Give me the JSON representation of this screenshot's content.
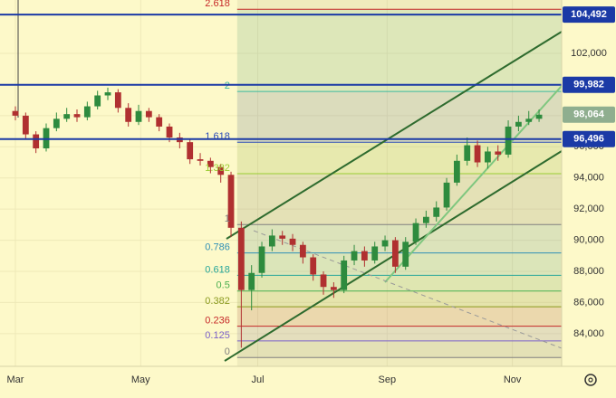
{
  "chart_data": {
    "type": "candlestick",
    "up_color": "#2e8b3e",
    "down_color": "#b03030",
    "grid": true,
    "xlim": [
      -1.5,
      53.2
    ],
    "xticks": [
      {
        "value": 0,
        "label": "Mar"
      },
      {
        "value": 12.2,
        "label": "May"
      },
      {
        "value": 23.6,
        "label": "Jul"
      },
      {
        "value": 36.2,
        "label": "Sep"
      },
      {
        "value": 48.4,
        "label": "Nov"
      }
    ],
    "ylim": [
      81900,
      105430
    ],
    "yticks": [
      {
        "value": 84000,
        "label": "84,000"
      },
      {
        "value": 86000,
        "label": "86,000"
      },
      {
        "value": 88000,
        "label": "88,000"
      },
      {
        "value": 90000,
        "label": "90,000"
      },
      {
        "value": 92000,
        "label": "92,000"
      },
      {
        "value": 94000,
        "label": "94,000"
      },
      {
        "value": 96000,
        "label": "96,000"
      },
      {
        "value": 98000,
        "label": "98,000"
      },
      {
        "value": 100000,
        "label": "100,000"
      },
      {
        "value": 102000,
        "label": "102,000"
      }
    ],
    "open": [
      98300,
      98000,
      96800,
      95900,
      97200,
      97800,
      98100,
      97900,
      98600,
      99300,
      99500,
      98500,
      97600,
      98300,
      97900,
      97300,
      96600,
      96300,
      95200,
      95100,
      94700,
      94200,
      90800,
      86800,
      87900,
      89600,
      90300,
      90100,
      89700,
      88900,
      87800,
      87000,
      86800,
      88700,
      89300,
      88700,
      89600,
      90000,
      88300,
      89900,
      91100,
      91500,
      92100,
      93700,
      95100,
      96100,
      95000,
      95700,
      95500,
      97300,
      97600,
      97800
    ],
    "high": [
      98600,
      98200,
      97000,
      97500,
      98200,
      98500,
      98400,
      98900,
      99600,
      99800,
      99700,
      98800,
      98700,
      98500,
      98100,
      97500,
      96900,
      96500,
      95600,
      95300,
      94900,
      94400,
      91200,
      88400,
      89900,
      90700,
      90600,
      90400,
      89900,
      89100,
      88000,
      87300,
      89000,
      89700,
      89600,
      89900,
      90300,
      90200,
      90200,
      91400,
      91900,
      92500,
      94000,
      95500,
      96600,
      96400,
      96000,
      96100,
      97700,
      98000,
      98300,
      98400
    ],
    "low": [
      97700,
      96500,
      95600,
      95700,
      97000,
      97600,
      97600,
      97700,
      98400,
      99000,
      98200,
      97300,
      97400,
      97600,
      97000,
      96300,
      95900,
      94900,
      94800,
      94300,
      93700,
      90200,
      83100,
      85500,
      87600,
      89300,
      89700,
      89300,
      88500,
      87400,
      86500,
      86300,
      86600,
      88400,
      88300,
      88500,
      89300,
      87900,
      88100,
      89700,
      90800,
      91200,
      91900,
      93500,
      94800,
      94700,
      94600,
      95100,
      95300,
      97000,
      97400,
      97600
    ],
    "close": [
      98000,
      96800,
      95900,
      97200,
      97800,
      98100,
      97900,
      98600,
      99300,
      99500,
      98500,
      97600,
      98300,
      97900,
      97300,
      96600,
      96300,
      95200,
      95100,
      94700,
      94200,
      90800,
      86800,
      87900,
      89600,
      90300,
      90100,
      89700,
      88900,
      87800,
      87000,
      86800,
      88700,
      89300,
      88700,
      89600,
      90000,
      88300,
      89900,
      91100,
      91500,
      92100,
      93700,
      95100,
      96100,
      95000,
      95700,
      95500,
      97300,
      97600,
      97800,
      98064
    ],
    "price_lines": {
      "color": "#1b3aa6",
      "levels": [
        {
          "value": 104492,
          "label": "104,492"
        },
        {
          "value": 99982,
          "label": "99,982"
        },
        {
          "value": 96496,
          "label": "96,496"
        }
      ]
    },
    "last_price": {
      "value": 98064,
      "label": "98,064",
      "color": "#8fae8f"
    },
    "fib": {
      "x_start": 21.6,
      "price_0": 82465,
      "price_1": 91010,
      "levels": [
        0,
        0.125,
        0.236,
        0.382,
        0.5,
        0.618,
        0.786,
        1,
        1.382,
        1.618,
        2,
        2.618
      ],
      "colors": [
        "#808080",
        "#7b61c9",
        "#c62828",
        "#8a9a1e",
        "#4caf50",
        "#26a69a",
        "#2f8fb5",
        "#808080",
        "#9acd32",
        "#2a4bb8",
        "#3cb8a0",
        "#c62828"
      ]
    }
  }
}
